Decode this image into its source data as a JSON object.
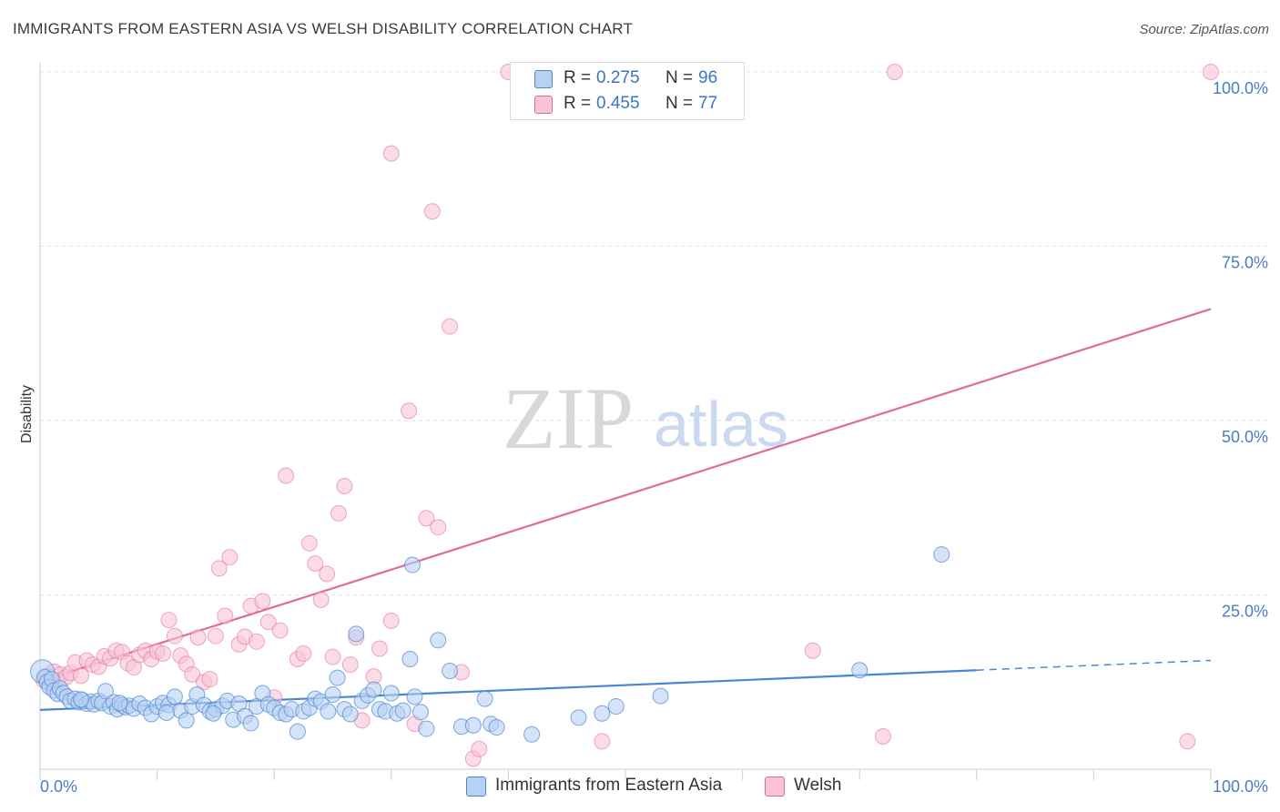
{
  "header": {
    "title": "IMMIGRANTS FROM EASTERN ASIA VS WELSH DISABILITY CORRELATION CHART",
    "source": "Source: ZipAtlas.com"
  },
  "watermark": {
    "zip": "ZIP",
    "atlas": "atlas"
  },
  "legend": {
    "items": [
      {
        "r_label": "R =",
        "r_value": "0.275",
        "n_label": "N =",
        "n_value": "96"
      },
      {
        "r_label": "R =",
        "r_value": "0.455",
        "n_label": "N =",
        "n_value": "77"
      }
    ]
  },
  "chart_data": {
    "type": "scatter",
    "title": "IMMIGRANTS FROM EASTERN ASIA VS WELSH DISABILITY CORRELATION CHART",
    "xlabel": "",
    "ylabel": "Disability",
    "xlim": [
      0,
      100
    ],
    "ylim": [
      0,
      100
    ],
    "x_tick_labels": [
      "0.0%",
      "100.0%"
    ],
    "y_ticks": [
      25,
      50,
      75,
      100
    ],
    "y_tick_labels": [
      "25.0%",
      "50.0%",
      "75.0%",
      "100.0%"
    ],
    "colors": {
      "blue": "#4a86d4",
      "blue_fill": "#b8d0f2",
      "pink": "#e26a98",
      "pink_fill": "#f7c3d5",
      "tick_text": "#4a7cc4"
    },
    "series": [
      {
        "name": "Immigrants from Eastern Asia",
        "r": 0.275,
        "n": 96,
        "trend": {
          "x0": 0,
          "y0": 8.5,
          "x1": 80,
          "y1": 14.2,
          "dash_to_x": 100,
          "dash_to_y": 15.6
        },
        "points": [
          [
            0.2,
            14.0
          ],
          [
            0.4,
            13.2
          ],
          [
            0.6,
            12.5
          ],
          [
            0.8,
            11.8
          ],
          [
            1.0,
            12.9
          ],
          [
            1.2,
            11.3
          ],
          [
            1.5,
            10.8
          ],
          [
            1.7,
            11.6
          ],
          [
            2.0,
            10.9
          ],
          [
            2.3,
            10.4
          ],
          [
            2.6,
            9.8
          ],
          [
            3.0,
            10.1
          ],
          [
            3.3,
            9.6
          ],
          [
            3.6,
            9.9
          ],
          [
            4.0,
            9.4
          ],
          [
            4.3,
            9.7
          ],
          [
            4.6,
            9.3
          ],
          [
            5.0,
            9.8
          ],
          [
            5.3,
            9.5
          ],
          [
            5.6,
            11.2
          ],
          [
            6.0,
            9.0
          ],
          [
            6.3,
            9.6
          ],
          [
            6.6,
            8.6
          ],
          [
            7.0,
            9.2
          ],
          [
            7.3,
            8.9
          ],
          [
            7.6,
            9.1
          ],
          [
            8.0,
            8.7
          ],
          [
            8.5,
            9.4
          ],
          [
            9.0,
            8.8
          ],
          [
            9.5,
            7.9
          ],
          [
            10.0,
            9.0
          ],
          [
            10.5,
            9.5
          ],
          [
            11.0,
            9.2
          ],
          [
            11.5,
            10.4
          ],
          [
            12.0,
            8.4
          ],
          [
            12.5,
            7.0
          ],
          [
            13.0,
            9.0
          ],
          [
            13.4,
            10.7
          ],
          [
            14.0,
            9.2
          ],
          [
            14.5,
            8.3
          ],
          [
            15.0,
            8.6
          ],
          [
            15.6,
            9.1
          ],
          [
            16.0,
            9.8
          ],
          [
            16.5,
            7.1
          ],
          [
            17.0,
            9.4
          ],
          [
            17.5,
            7.6
          ],
          [
            18.0,
            6.6
          ],
          [
            18.5,
            9.0
          ],
          [
            19.0,
            10.9
          ],
          [
            19.5,
            9.3
          ],
          [
            20.0,
            8.8
          ],
          [
            20.5,
            8.1
          ],
          [
            21.0,
            7.9
          ],
          [
            21.5,
            8.6
          ],
          [
            22.0,
            5.4
          ],
          [
            22.5,
            8.3
          ],
          [
            23.0,
            8.8
          ],
          [
            23.5,
            10.1
          ],
          [
            24.0,
            9.7
          ],
          [
            24.6,
            8.3
          ],
          [
            25.0,
            10.7
          ],
          [
            25.4,
            13.1
          ],
          [
            26.0,
            8.6
          ],
          [
            26.5,
            7.9
          ],
          [
            27.0,
            19.4
          ],
          [
            27.5,
            9.8
          ],
          [
            28.0,
            10.6
          ],
          [
            28.5,
            11.4
          ],
          [
            29.0,
            8.6
          ],
          [
            29.5,
            8.3
          ],
          [
            30.0,
            10.9
          ],
          [
            30.5,
            8.0
          ],
          [
            31.0,
            8.4
          ],
          [
            31.6,
            15.8
          ],
          [
            32.0,
            10.4
          ],
          [
            32.5,
            8.2
          ],
          [
            33.0,
            5.8
          ],
          [
            34.0,
            18.5
          ],
          [
            35.0,
            14.1
          ],
          [
            36.0,
            6.1
          ],
          [
            37.0,
            6.3
          ],
          [
            38.0,
            10.1
          ],
          [
            38.5,
            6.5
          ],
          [
            39.0,
            6.0
          ],
          [
            31.8,
            29.3
          ],
          [
            42.0,
            5.0
          ],
          [
            46.0,
            7.4
          ],
          [
            48.0,
            8.0
          ],
          [
            49.2,
            9.0
          ],
          [
            53.0,
            10.5
          ],
          [
            70.0,
            14.2
          ],
          [
            77.0,
            30.8
          ],
          [
            3.5,
            10.0
          ],
          [
            6.8,
            9.5
          ],
          [
            10.8,
            8.1
          ],
          [
            14.8,
            8.0
          ]
        ]
      },
      {
        "name": "Welsh",
        "r": 0.455,
        "n": 77,
        "trend": {
          "x0": 0,
          "y0": 12.6,
          "x1": 100,
          "y1": 66.0
        },
        "points": [
          [
            0.3,
            12.8
          ],
          [
            0.6,
            13.4
          ],
          [
            0.9,
            12.3
          ],
          [
            1.2,
            14.0
          ],
          [
            1.5,
            12.7
          ],
          [
            1.8,
            13.6
          ],
          [
            2.2,
            13.2
          ],
          [
            2.6,
            13.8
          ],
          [
            3.0,
            15.3
          ],
          [
            3.5,
            13.4
          ],
          [
            4.0,
            15.6
          ],
          [
            4.5,
            15.0
          ],
          [
            5.0,
            14.7
          ],
          [
            5.5,
            16.2
          ],
          [
            6.0,
            15.9
          ],
          [
            6.5,
            17.0
          ],
          [
            7.0,
            16.8
          ],
          [
            7.5,
            15.2
          ],
          [
            8.0,
            14.6
          ],
          [
            8.5,
            16.4
          ],
          [
            9.0,
            17.0
          ],
          [
            9.5,
            15.8
          ],
          [
            10.0,
            16.9
          ],
          [
            10.5,
            16.6
          ],
          [
            11.0,
            21.4
          ],
          [
            11.5,
            19.1
          ],
          [
            12.0,
            16.3
          ],
          [
            12.5,
            15.1
          ],
          [
            13.0,
            13.6
          ],
          [
            13.5,
            18.9
          ],
          [
            14.0,
            12.5
          ],
          [
            14.5,
            12.9
          ],
          [
            15.0,
            19.1
          ],
          [
            15.3,
            28.8
          ],
          [
            15.8,
            22.0
          ],
          [
            16.2,
            30.4
          ],
          [
            17.0,
            17.9
          ],
          [
            17.5,
            19.0
          ],
          [
            18.0,
            23.4
          ],
          [
            18.5,
            18.3
          ],
          [
            19.0,
            24.1
          ],
          [
            19.5,
            21.1
          ],
          [
            20.0,
            10.3
          ],
          [
            20.5,
            19.9
          ],
          [
            21.0,
            42.1
          ],
          [
            22.0,
            15.8
          ],
          [
            22.5,
            16.6
          ],
          [
            23.0,
            32.4
          ],
          [
            23.5,
            29.5
          ],
          [
            24.0,
            24.3
          ],
          [
            24.5,
            28.0
          ],
          [
            25.0,
            16.1
          ],
          [
            25.5,
            36.7
          ],
          [
            26.0,
            40.6
          ],
          [
            26.5,
            15.0
          ],
          [
            27.0,
            18.9
          ],
          [
            27.5,
            7.0
          ],
          [
            28.5,
            13.3
          ],
          [
            29.0,
            17.3
          ],
          [
            30.0,
            21.3
          ],
          [
            31.5,
            51.4
          ],
          [
            32.0,
            6.5
          ],
          [
            33.0,
            36.0
          ],
          [
            34.0,
            34.7
          ],
          [
            35.0,
            63.5
          ],
          [
            36.0,
            13.9
          ],
          [
            37.0,
            1.5
          ],
          [
            37.5,
            2.9
          ],
          [
            40.0,
            100.0
          ],
          [
            48.0,
            4.0
          ],
          [
            30.0,
            88.3
          ],
          [
            33.5,
            80.0
          ],
          [
            66.0,
            17.0
          ],
          [
            72.0,
            4.7
          ],
          [
            73.0,
            100.0
          ],
          [
            98.0,
            4.0
          ],
          [
            100.0,
            100.0
          ]
        ]
      }
    ]
  },
  "bottom_legend": {
    "items": [
      {
        "label": "Immigrants from Eastern Asia"
      },
      {
        "label": "Welsh"
      }
    ]
  }
}
